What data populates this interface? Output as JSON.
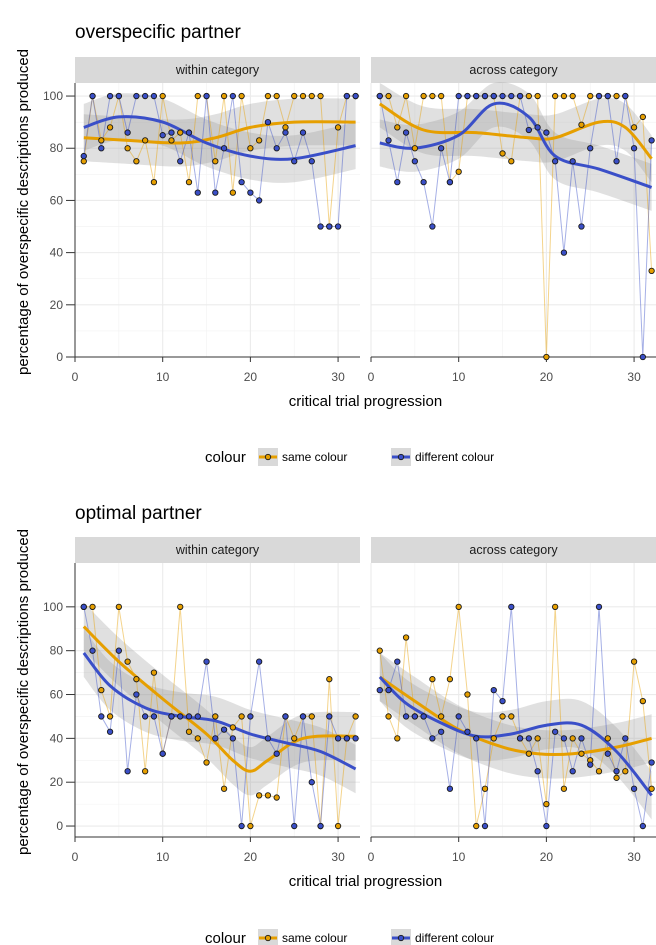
{
  "chart_data": [
    {
      "type": "line",
      "title": "overspecific partner",
      "xlabel": "critical trial progression",
      "ylabel": "percentage of overspecific descriptions produced",
      "xlim": [
        0,
        32.5
      ],
      "ylim": [
        0,
        105
      ],
      "xticks": [
        0,
        10,
        20,
        30
      ],
      "yticks": [
        0,
        20,
        40,
        60,
        80,
        100
      ],
      "grid": true,
      "legend": {
        "title": "colour",
        "position": "bottom",
        "entries": [
          "same colour",
          "different colour"
        ]
      },
      "panels": [
        {
          "label": "within category",
          "series": [
            {
              "name": "same colour",
              "color": "#E69F00",
              "x": [
                1,
                2,
                3,
                4,
                5,
                6,
                7,
                8,
                9,
                10,
                11,
                12,
                13,
                14,
                15,
                16,
                17,
                18,
                19,
                20,
                21,
                22,
                23,
                24,
                25,
                26,
                27,
                28,
                29,
                30,
                31,
                32
              ],
              "y": [
                75,
                100,
                83,
                88,
                100,
                80,
                75,
                83,
                67,
                100,
                83,
                86,
                67,
                100,
                100,
                75,
                100,
                63,
                100,
                80,
                83,
                100,
                100,
                88,
                100,
                100,
                100,
                100,
                50,
                88,
                100,
                100
              ],
              "smooth": [
                [
                  1,
                  84
                ],
                [
                  6,
                  83
                ],
                [
                  12,
                  82
                ],
                [
                  16,
                  84
                ],
                [
                  20,
                  88
                ],
                [
                  25,
                  90
                ],
                [
                  32,
                  90
                ]
              ]
            },
            {
              "name": "different colour",
              "color": "#3A4FC8",
              "x": [
                1,
                2,
                3,
                4,
                5,
                6,
                7,
                8,
                9,
                10,
                11,
                12,
                13,
                14,
                15,
                16,
                17,
                18,
                19,
                20,
                21,
                22,
                23,
                24,
                25,
                26,
                27,
                28,
                29,
                30,
                31,
                32
              ],
              "y": [
                77,
                100,
                80,
                100,
                100,
                86,
                100,
                100,
                100,
                85,
                86,
                75,
                86,
                63,
                100,
                63,
                80,
                100,
                67,
                63,
                60,
                90,
                80,
                86,
                75,
                86,
                75,
                50,
                50,
                50,
                100,
                100
              ],
              "smooth": [
                [
                  1,
                  88
                ],
                [
                  5,
                  92
                ],
                [
                  10,
                  90
                ],
                [
                  15,
                  82
                ],
                [
                  20,
                  77
                ],
                [
                  25,
                  76
                ],
                [
                  32,
                  81
                ]
              ]
            }
          ]
        },
        {
          "label": "across category",
          "series": [
            {
              "name": "same colour",
              "color": "#E69F00",
              "x": [
                1,
                2,
                3,
                4,
                5,
                6,
                7,
                8,
                9,
                10,
                11,
                12,
                13,
                14,
                15,
                16,
                17,
                18,
                19,
                20,
                21,
                22,
                23,
                24,
                25,
                26,
                27,
                28,
                29,
                30,
                31,
                32
              ],
              "y": [
                100,
                100,
                88,
                100,
                80,
                100,
                100,
                100,
                67,
                71,
                100,
                100,
                100,
                100,
                78,
                75,
                100,
                100,
                100,
                0,
                100,
                100,
                100,
                89,
                100,
                100,
                100,
                100,
                100,
                88,
                92,
                33
              ],
              "smooth": [
                [
                  1,
                  97
                ],
                [
                  6,
                  87
                ],
                [
                  12,
                  86
                ],
                [
                  18,
                  84
                ],
                [
                  21,
                  84
                ],
                [
                  26,
                  90
                ],
                [
                  29,
                  88
                ],
                [
                  32,
                  76
                ]
              ]
            },
            {
              "name": "different colour",
              "color": "#3A4FC8",
              "x": [
                1,
                2,
                3,
                4,
                5,
                6,
                7,
                8,
                9,
                10,
                11,
                12,
                13,
                14,
                15,
                16,
                17,
                18,
                19,
                20,
                21,
                22,
                23,
                24,
                25,
                26,
                27,
                28,
                29,
                30,
                31,
                32
              ],
              "y": [
                100,
                83,
                67,
                86,
                75,
                67,
                50,
                80,
                67,
                100,
                100,
                100,
                100,
                100,
                100,
                100,
                100,
                87,
                88,
                86,
                75,
                40,
                75,
                50,
                80,
                100,
                100,
                75,
                100,
                80,
                0,
                83
              ],
              "smooth": [
                [
                  1,
                  82
                ],
                [
                  5,
                  80
                ],
                [
                  10,
                  85
                ],
                [
                  14,
                  97
                ],
                [
                  18,
                  92
                ],
                [
                  21,
                  77
                ],
                [
                  26,
                  72
                ],
                [
                  32,
                  65
                ]
              ]
            }
          ]
        }
      ]
    },
    {
      "type": "line",
      "title": "optimal partner",
      "xlabel": "critical trial progression",
      "ylabel": "percentage of overspecific descriptions produced",
      "xlim": [
        0,
        32.5
      ],
      "ylim": [
        -5,
        120
      ],
      "xticks": [
        0,
        10,
        20,
        30
      ],
      "yticks": [
        0,
        20,
        40,
        60,
        80,
        100
      ],
      "grid": true,
      "legend": {
        "title": "colour",
        "position": "bottom",
        "entries": [
          "same colour",
          "different colour"
        ]
      },
      "panels": [
        {
          "label": "within category",
          "series": [
            {
              "name": "same colour",
              "color": "#E69F00",
              "x": [
                1,
                2,
                3,
                4,
                5,
                6,
                7,
                8,
                9,
                10,
                11,
                12,
                13,
                14,
                15,
                16,
                17,
                18,
                19,
                20,
                21,
                22,
                23,
                24,
                25,
                26,
                27,
                28,
                29,
                30,
                31,
                32
              ],
              "y": [
                100,
                100,
                62,
                50,
                100,
                75,
                67,
                25,
                70,
                33,
                50,
                100,
                43,
                40,
                29,
                50,
                17,
                45,
                50,
                0,
                14,
                14,
                13,
                50,
                40,
                50,
                50,
                0,
                67,
                0,
                40,
                50
              ],
              "smooth": [
                [
                  1,
                  91
                ],
                [
                  5,
                  75
                ],
                [
                  10,
                  58
                ],
                [
                  15,
                  42
                ],
                [
                  18,
                  30
                ],
                [
                  20,
                  25
                ],
                [
                  22,
                  30
                ],
                [
                  26,
                  40
                ],
                [
                  32,
                  41
                ]
              ]
            },
            {
              "name": "different colour",
              "color": "#3A4FC8",
              "x": [
                1,
                2,
                3,
                4,
                5,
                6,
                7,
                8,
                9,
                10,
                11,
                12,
                13,
                14,
                15,
                16,
                17,
                18,
                19,
                20,
                21,
                22,
                23,
                24,
                25,
                26,
                27,
                28,
                29,
                30,
                31,
                32
              ],
              "y": [
                100,
                80,
                50,
                43,
                80,
                25,
                60,
                50,
                50,
                33,
                50,
                50,
                50,
                50,
                75,
                40,
                44,
                40,
                0,
                50,
                75,
                40,
                33,
                50,
                0,
                50,
                20,
                0,
                50,
                40,
                40,
                40
              ],
              "smooth": [
                [
                  1,
                  79
                ],
                [
                  4,
                  64
                ],
                [
                  8,
                  54
                ],
                [
                  12,
                  50
                ],
                [
                  16,
                  48
                ],
                [
                  20,
                  42
                ],
                [
                  24,
                  38
                ],
                [
                  28,
                  34
                ],
                [
                  32,
                  26
                ]
              ]
            }
          ]
        },
        {
          "label": "across category",
          "series": [
            {
              "name": "same colour",
              "color": "#E69F00",
              "x": [
                1,
                2,
                3,
                4,
                5,
                6,
                7,
                8,
                9,
                10,
                11,
                12,
                13,
                14,
                15,
                16,
                17,
                18,
                19,
                20,
                21,
                22,
                23,
                24,
                25,
                26,
                27,
                28,
                29,
                30,
                31,
                32
              ],
              "y": [
                80,
                50,
                40,
                86,
                50,
                50,
                67,
                50,
                67,
                100,
                60,
                0,
                17,
                40,
                50,
                50,
                40,
                33,
                40,
                10,
                100,
                17,
                40,
                33,
                30,
                25,
                40,
                22,
                25,
                75,
                57,
                17
              ],
              "smooth": [
                [
                  1,
                  68
                ],
                [
                  5,
                  57
                ],
                [
                  10,
                  44
                ],
                [
                  15,
                  36
                ],
                [
                  19,
                  33
                ],
                [
                  23,
                  33
                ],
                [
                  28,
                  36
                ],
                [
                  32,
                  40
                ]
              ]
            },
            {
              "name": "different colour",
              "color": "#3A4FC8",
              "x": [
                1,
                2,
                3,
                4,
                5,
                6,
                7,
                8,
                9,
                10,
                11,
                12,
                13,
                14,
                15,
                16,
                17,
                18,
                19,
                20,
                21,
                22,
                23,
                24,
                25,
                26,
                27,
                28,
                29,
                30,
                31,
                32
              ],
              "y": [
                62,
                62,
                75,
                50,
                50,
                50,
                40,
                43,
                17,
                50,
                43,
                40,
                0,
                62,
                57,
                100,
                40,
                40,
                25,
                0,
                43,
                40,
                25,
                40,
                28,
                100,
                33,
                25,
                40,
                17,
                0,
                29
              ],
              "smooth": [
                [
                  1,
                  68
                ],
                [
                  4,
                  56
                ],
                [
                  8,
                  47
                ],
                [
                  12,
                  41
                ],
                [
                  16,
                  42
                ],
                [
                  20,
                  46
                ],
                [
                  24,
                  46
                ],
                [
                  28,
                  34
                ],
                [
                  32,
                  14
                ]
              ]
            }
          ]
        }
      ]
    }
  ]
}
